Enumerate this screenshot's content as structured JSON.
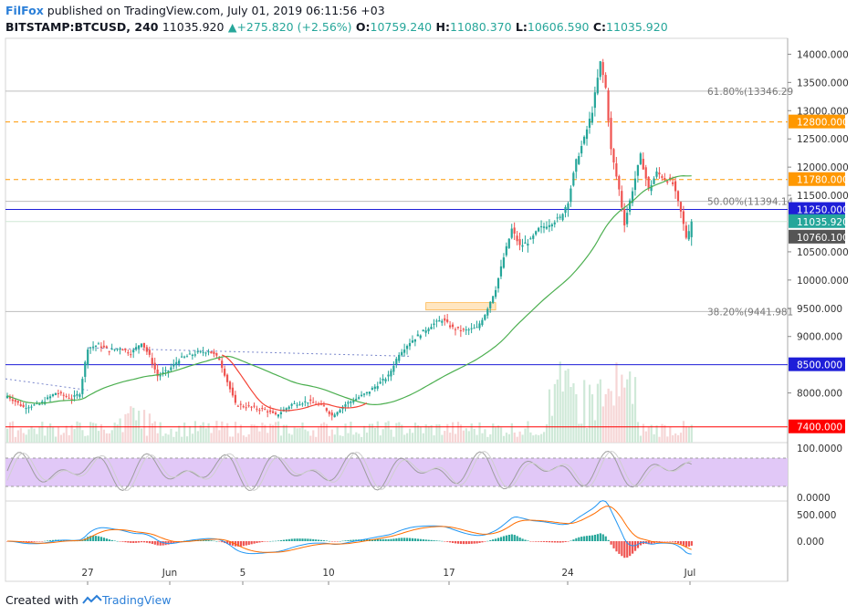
{
  "header": {
    "brand": "FilFox",
    "published": " published on TradingView.com, July 01, 2019 06:11:56 +03",
    "symbol": "BITSTAMP:BTCUSD, 240",
    "last": "11035.920",
    "arrow": "▲",
    "change": "+275.820 (+2.56%)",
    "o_label": "O:",
    "o": "10759.240",
    "h_label": "H:",
    "h": "11080.370",
    "l_label": "L:",
    "l": "10606.590",
    "c_label": "C:",
    "c": "11035.920"
  },
  "footer": {
    "created": "Created with",
    "brand": "TradingView"
  },
  "colors": {
    "up": "#26a69a",
    "down": "#ef5350",
    "orange": "#ff9800",
    "blue": "#1e1ed8",
    "red": "#ff0000",
    "ma_green": "#4caf50",
    "ma_red": "#f44336"
  },
  "chart_data": {
    "type": "candlestick",
    "symbol": "BITSTAMP:BTCUSD",
    "interval": "240",
    "y_ticks": [
      "14000.000",
      "13500.000",
      "13000.000",
      "12500.000",
      "12000.000",
      "11500.000",
      "10500.000",
      "10000.000",
      "9500.000",
      "9000.000",
      "8000.000"
    ],
    "x_ticks": [
      "27",
      "Jun",
      "5",
      "10",
      "17",
      "24",
      "Jul"
    ],
    "horizontal_lines": [
      {
        "label": "12800.000",
        "value": 12800,
        "style": "dashed",
        "color": "#ff9800"
      },
      {
        "label": "11780.000",
        "value": 11780,
        "style": "dashed",
        "color": "#ff9800"
      },
      {
        "label": "11250.000",
        "value": 11250,
        "style": "solid",
        "color": "#1e1ed8"
      },
      {
        "label": "8500.000",
        "value": 8500,
        "style": "solid",
        "color": "#1e1ed8"
      },
      {
        "label": "7400.000",
        "value": 7400,
        "style": "solid",
        "color": "#ff0000"
      }
    ],
    "fib_levels": [
      {
        "label": "61.80%(13346.29",
        "value": 13346.29
      },
      {
        "label": "50.00%(11394.14",
        "value": 11394.14
      },
      {
        "label": "38.20%(9441.981",
        "value": 9441.98
      }
    ],
    "price_tags": [
      {
        "label": "11035.920",
        "value": 11035.92,
        "color": "#26a69a"
      },
      {
        "label": "10760.100",
        "value": 10760.1,
        "color": "#555555"
      }
    ],
    "close_path": [
      [
        0,
        7950
      ],
      [
        6,
        7750
      ],
      [
        12,
        7800
      ],
      [
        18,
        8000
      ],
      [
        24,
        7900
      ],
      [
        27,
        8000
      ],
      [
        30,
        8800
      ],
      [
        34,
        8850
      ],
      [
        38,
        8750
      ],
      [
        42,
        8800
      ],
      [
        46,
        8700
      ],
      [
        50,
        8900
      ],
      [
        53,
        8650
      ],
      [
        56,
        8300
      ],
      [
        60,
        8400
      ],
      [
        64,
        8600
      ],
      [
        70,
        8700
      ],
      [
        75,
        8750
      ],
      [
        79,
        8600
      ],
      [
        82,
        8200
      ],
      [
        85,
        7800
      ],
      [
        90,
        7750
      ],
      [
        96,
        7700
      ],
      [
        100,
        7600
      ],
      [
        106,
        7800
      ],
      [
        112,
        7850
      ],
      [
        118,
        7750
      ],
      [
        121,
        7600
      ],
      [
        126,
        7800
      ],
      [
        130,
        7900
      ],
      [
        134,
        8000
      ],
      [
        138,
        8150
      ],
      [
        142,
        8300
      ],
      [
        146,
        8700
      ],
      [
        150,
        8900
      ],
      [
        154,
        9050
      ],
      [
        158,
        9200
      ],
      [
        162,
        9300
      ],
      [
        166,
        9150
      ],
      [
        170,
        9100
      ],
      [
        175,
        9150
      ],
      [
        178,
        9400
      ],
      [
        182,
        9850
      ],
      [
        185,
        10400
      ],
      [
        188,
        10900
      ],
      [
        191,
        10600
      ],
      [
        195,
        10700
      ],
      [
        198,
        10900
      ],
      [
        202,
        11000
      ],
      [
        206,
        11100
      ],
      [
        209,
        11400
      ],
      [
        212,
        12100
      ],
      [
        215,
        12500
      ],
      [
        218,
        13000
      ],
      [
        221,
        13850
      ],
      [
        223,
        13400
      ],
      [
        225,
        12300
      ],
      [
        228,
        11600
      ],
      [
        230,
        11000
      ],
      [
        233,
        11600
      ],
      [
        236,
        12200
      ],
      [
        239,
        11600
      ],
      [
        242,
        11900
      ],
      [
        245,
        11800
      ],
      [
        248,
        11700
      ],
      [
        251,
        11200
      ],
      [
        253,
        10760
      ],
      [
        255,
        11036
      ]
    ],
    "candle_count": 256,
    "oscillator": {
      "upper": "100.0000",
      "lower": "0.0000"
    },
    "macd": {
      "upper": "500.000",
      "zero": "0.000"
    }
  }
}
